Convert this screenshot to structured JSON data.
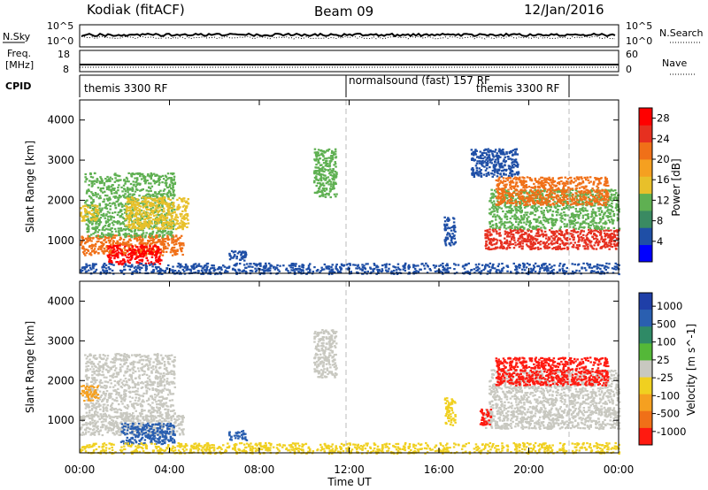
{
  "header": {
    "station": "Kodiak (fitACF)",
    "beam": "Beam 09",
    "date": "12/Jan/2016"
  },
  "aux": {
    "nsky_label": "N.Sky",
    "nsky_ticks": [
      "10^5",
      "10^0"
    ],
    "nsearch_label": "N.Search",
    "nsearch_ticks": [
      "10^5",
      "10^0"
    ],
    "freq_label_1": "Freq.",
    "freq_label_2": "[MHz]",
    "freq_ticks": [
      "18",
      "8"
    ],
    "nave_label": "Nave",
    "nave_ticks": [
      "60",
      "0"
    ],
    "cpid_label": "CPID",
    "cpid_segments": [
      "themis 3300 RF",
      "normalsound (fast) 157 RF",
      "themis 3300 RF"
    ]
  },
  "colors": {
    "power_scale": [
      "#0000ff",
      "#1f4fa6",
      "#3a8a62",
      "#5fb052",
      "#e8c02a",
      "#f5a020",
      "#f07018",
      "#e63020",
      "#ff0000"
    ],
    "velocity_scale": [
      "#1f3fa8",
      "#2a5fb0",
      "#2f8a66",
      "#54b838",
      "#c8c8c0",
      "#f0d020",
      "#f5a020",
      "#f07018",
      "#ff1a10"
    ]
  },
  "chart_data": [
    {
      "type": "heatmap",
      "title": "Power",
      "xlabel": "",
      "ylabel": "Slant Range [km]",
      "x_ticks": [
        "00:00",
        "04:00",
        "08:00",
        "12:00",
        "16:00",
        "20:00",
        "00:00"
      ],
      "xlim": [
        0,
        24
      ],
      "y_ticks": [
        "1000",
        "2000",
        "3000",
        "4000"
      ],
      "ylim": [
        180,
        4500
      ],
      "colorbar": {
        "label": "Power [dB]",
        "ticks": [
          "4",
          "8",
          "12",
          "16",
          "20",
          "24",
          "28"
        ],
        "range": [
          0,
          30
        ]
      },
      "cpid_boundaries": [
        12.0,
        21.9
      ],
      "regions": [
        {
          "x": [
            0.0,
            4.6
          ],
          "y": [
            650,
            1150
          ],
          "v": 22
        },
        {
          "x": [
            1.2,
            3.6
          ],
          "y": [
            420,
            900
          ],
          "v": 28
        },
        {
          "x": [
            0.2,
            4.2
          ],
          "y": [
            1100,
            2700
          ],
          "v": 12
        },
        {
          "x": [
            2.0,
            4.8
          ],
          "y": [
            1300,
            2100
          ],
          "v": 16
        },
        {
          "x": [
            0.0,
            0.8
          ],
          "y": [
            1500,
            1900
          ],
          "v": 14
        },
        {
          "x": [
            10.4,
            11.4
          ],
          "y": [
            2100,
            3300
          ],
          "v": 10
        },
        {
          "x": [
            6.6,
            7.4
          ],
          "y": [
            520,
            760
          ],
          "v": 6
        },
        {
          "x": [
            16.2,
            16.7
          ],
          "y": [
            900,
            1600
          ],
          "v": 6
        },
        {
          "x": [
            18.0,
            24.0
          ],
          "y": [
            800,
            1300
          ],
          "v": 24
        },
        {
          "x": [
            18.2,
            24.0
          ],
          "y": [
            1300,
            2300
          ],
          "v": 12
        },
        {
          "x": [
            18.5,
            23.5
          ],
          "y": [
            1900,
            2600
          ],
          "v": 20
        },
        {
          "x": [
            17.4,
            19.5
          ],
          "y": [
            2600,
            3300
          ],
          "v": 6
        },
        {
          "x": [
            0.0,
            24.0
          ],
          "y": [
            180,
            450
          ],
          "v": 6
        }
      ]
    },
    {
      "type": "heatmap",
      "title": "Velocity",
      "xlabel": "Time UT",
      "ylabel": "Slant Range [km]",
      "x_ticks": [
        "00:00",
        "04:00",
        "08:00",
        "12:00",
        "16:00",
        "20:00",
        "00:00"
      ],
      "xlim": [
        0,
        24
      ],
      "y_ticks": [
        "1000",
        "2000",
        "3000",
        "4000"
      ],
      "ylim": [
        180,
        4500
      ],
      "colorbar": {
        "label": "Velocity [m s^-1]",
        "ticks": [
          "1000",
          "500",
          "100",
          "25",
          "-25",
          "-100",
          "-500",
          "-1000"
        ],
        "range": [
          -1000,
          1000
        ]
      },
      "cpid_boundaries": [
        12.0,
        21.9
      ],
      "regions": [
        {
          "x": [
            0.0,
            4.6
          ],
          "y": [
            650,
            1150
          ],
          "v": 0
        },
        {
          "x": [
            1.8,
            4.2
          ],
          "y": [
            420,
            950
          ],
          "v": 150
        },
        {
          "x": [
            0.2,
            4.2
          ],
          "y": [
            1100,
            2700
          ],
          "v": 0
        },
        {
          "x": [
            0.0,
            0.8
          ],
          "y": [
            1500,
            1900
          ],
          "v": -300
        },
        {
          "x": [
            10.4,
            11.4
          ],
          "y": [
            2100,
            3300
          ],
          "v": 0
        },
        {
          "x": [
            6.6,
            7.4
          ],
          "y": [
            520,
            760
          ],
          "v": 150
        },
        {
          "x": [
            16.2,
            16.7
          ],
          "y": [
            900,
            1600
          ],
          "v": -50
        },
        {
          "x": [
            18.0,
            24.0
          ],
          "y": [
            800,
            1300
          ],
          "v": 0
        },
        {
          "x": [
            17.8,
            18.3
          ],
          "y": [
            900,
            1300
          ],
          "v": -600
        },
        {
          "x": [
            18.2,
            24.0
          ],
          "y": [
            1300,
            2300
          ],
          "v": 0
        },
        {
          "x": [
            18.5,
            23.5
          ],
          "y": [
            1900,
            2600
          ],
          "v": -700
        },
        {
          "x": [
            0.0,
            24.0
          ],
          "y": [
            180,
            450
          ],
          "v": -60
        }
      ]
    }
  ]
}
